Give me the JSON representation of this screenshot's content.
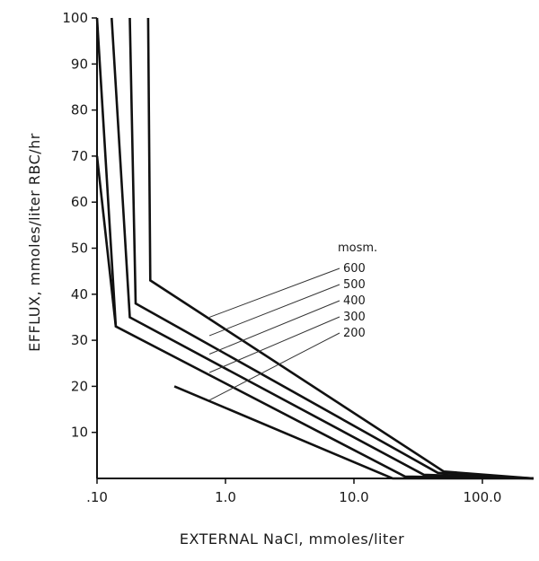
{
  "chart_data": {
    "type": "line",
    "title": "",
    "xlabel": "EXTERNAL NaCl, mmoles/liter",
    "ylabel": "EFFLUX, mmoles/liter RBC/hr",
    "x_scale": "log",
    "xlim": [
      0.1,
      300
    ],
    "ylim": [
      0,
      100
    ],
    "x_ticks": [
      0.1,
      1.0,
      10.0,
      100.0
    ],
    "x_tick_labels": [
      ".10",
      "1.0",
      "10.0",
      "100.0"
    ],
    "y_ticks": [
      10,
      20,
      30,
      40,
      50,
      60,
      70,
      80,
      90,
      100
    ],
    "y_tick_labels": [
      "10",
      "20",
      "30",
      "40",
      "50",
      "60",
      "70",
      "80",
      "90",
      "100"
    ],
    "grid": false,
    "legend_title": "mosm.",
    "series": [
      {
        "name": "600",
        "x": [
          0.25,
          0.26,
          50,
          250
        ],
        "y": [
          100,
          43,
          1.5,
          0
        ],
        "label_at": [
          0.75,
          35
        ]
      },
      {
        "name": "500",
        "x": [
          0.18,
          0.2,
          45,
          250
        ],
        "y": [
          100,
          38,
          1.2,
          0
        ],
        "label_at": [
          0.75,
          31
        ]
      },
      {
        "name": "400",
        "x": [
          0.13,
          0.18,
          35,
          250
        ],
        "y": [
          100,
          35,
          0.8,
          0
        ],
        "label_at": [
          0.75,
          27
        ]
      },
      {
        "name": "300",
        "x": [
          0.1,
          0.14,
          25,
          250
        ],
        "y": [
          100,
          33,
          0.4,
          0
        ],
        "label_at": [
          0.75,
          23
        ]
      },
      {
        "name": "200",
        "x": [
          0.4,
          20,
          250
        ],
        "y": [
          20,
          0,
          0
        ],
        "label_at": [
          0.75,
          17
        ]
      }
    ],
    "extra_line": {
      "x": [
        0.1,
        0.14
      ],
      "y": [
        70,
        33
      ]
    }
  }
}
